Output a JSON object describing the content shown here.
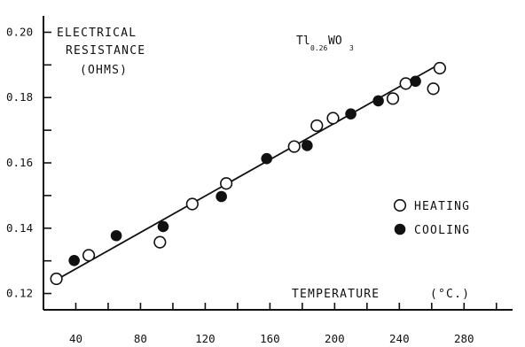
{
  "chart_data": {
    "type": "scatter",
    "title": "",
    "annotation": {
      "prefix": "Tl",
      "subscript1": "0.26",
      "middle": "WO",
      "subscript2": "3"
    },
    "ylabel": [
      "ELECTRICAL",
      "RESISTANCE",
      "(OHMS)"
    ],
    "xlabel": {
      "main": "TEMPERATURE",
      "unit": "(°C.)"
    },
    "xlim": [
      20,
      310
    ],
    "ylim": [
      0.115,
      0.205
    ],
    "x_ticks": [
      20,
      40,
      60,
      80,
      100,
      120,
      140,
      160,
      180,
      200,
      220,
      240,
      260,
      280,
      300
    ],
    "x_tick_labels": [
      {
        "value": 40,
        "label": "40"
      },
      {
        "value": 80,
        "label": "80"
      },
      {
        "value": 120,
        "label": "120"
      },
      {
        "value": 160,
        "label": "160"
      },
      {
        "value": 200,
        "label": "200"
      },
      {
        "value": 240,
        "label": "240"
      },
      {
        "value": 280,
        "label": "280"
      }
    ],
    "y_ticks": [
      0.12,
      0.13,
      0.14,
      0.15,
      0.16,
      0.17,
      0.18,
      0.19,
      0.2
    ],
    "y_tick_labels": [
      {
        "value": 0.12,
        "label": "0.12"
      },
      {
        "value": 0.14,
        "label": "0.14"
      },
      {
        "value": 0.16,
        "label": "0.16"
      },
      {
        "value": 0.18,
        "label": "0.18"
      },
      {
        "value": 0.2,
        "label": "0.20"
      }
    ],
    "grid": false,
    "legend_position": "right-middle",
    "series": [
      {
        "name": "HEATING",
        "marker": "open-circle",
        "points": [
          [
            28,
            0.1245
          ],
          [
            48,
            0.1317
          ],
          [
            92,
            0.1357
          ],
          [
            112,
            0.1474
          ],
          [
            133,
            0.1537
          ],
          [
            175,
            0.165
          ],
          [
            189,
            0.1714
          ],
          [
            199,
            0.1737
          ],
          [
            236,
            0.1797
          ],
          [
            244,
            0.1843
          ],
          [
            261,
            0.1827
          ],
          [
            265,
            0.189
          ]
        ]
      },
      {
        "name": "COOLING",
        "marker": "filled-circle",
        "points": [
          [
            39,
            0.1301
          ],
          [
            65,
            0.1377
          ],
          [
            94,
            0.1405
          ],
          [
            130,
            0.1497
          ],
          [
            158,
            0.1613
          ],
          [
            183,
            0.1653
          ],
          [
            210,
            0.175
          ],
          [
            227,
            0.179
          ],
          [
            250,
            0.185
          ]
        ]
      }
    ],
    "fit_line": {
      "points": [
        [
          28,
          0.1242
        ],
        [
          265,
          0.1903
        ]
      ]
    },
    "colors": {
      "ink": "#111111",
      "background": "#ffffff"
    }
  }
}
